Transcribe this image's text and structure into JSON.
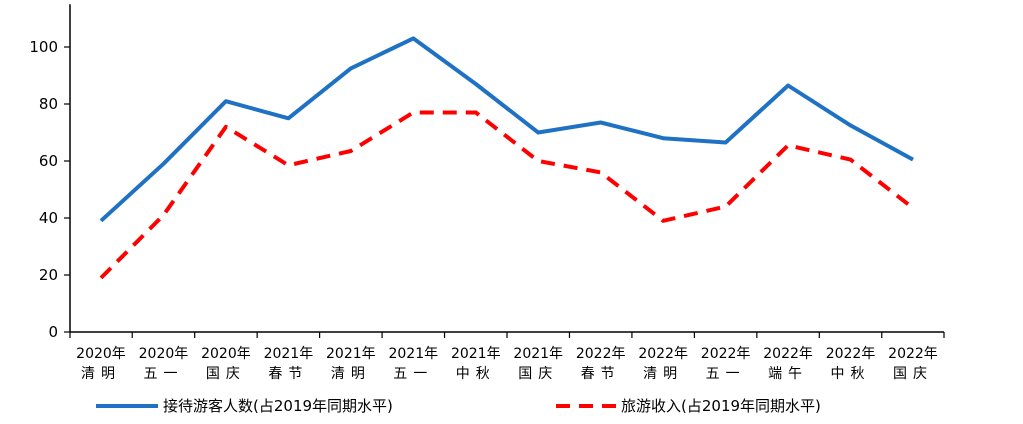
{
  "chart_data": {
    "type": "line",
    "categories": [
      [
        "2020年",
        "清明"
      ],
      [
        "2020年",
        "五一"
      ],
      [
        "2020年",
        "国庆"
      ],
      [
        "2021年",
        "春节"
      ],
      [
        "2021年",
        "清明"
      ],
      [
        "2021年",
        "五一"
      ],
      [
        "2021年",
        "中秋"
      ],
      [
        "2021年",
        "国庆"
      ],
      [
        "2022年",
        "春节"
      ],
      [
        "2022年",
        "清明"
      ],
      [
        "2022年",
        "五一"
      ],
      [
        "2022年",
        "端午"
      ],
      [
        "2022年",
        "中秋"
      ],
      [
        "2022年",
        "国庆"
      ]
    ],
    "series": [
      {
        "name": "接待游客人数(占2019年同期水平)",
        "color": "#1f72c3",
        "dash": "solid",
        "values": [
          39,
          59,
          81,
          75,
          92.5,
          103,
          87,
          70,
          73.5,
          68,
          66.5,
          86.5,
          72.5,
          60.5
        ]
      },
      {
        "name": "旅游收入(占2019年同期水平)",
        "color": "#ff0000",
        "dash": "dashed",
        "values": [
          19,
          41,
          72,
          58.5,
          63.5,
          77,
          77,
          60,
          56,
          39,
          44,
          65.5,
          60.5,
          43.5
        ]
      }
    ],
    "y_ticks": [
      0,
      20,
      40,
      60,
      80,
      100
    ],
    "ylim": [
      0,
      115
    ],
    "grid": false,
    "legend_position": "bottom"
  }
}
